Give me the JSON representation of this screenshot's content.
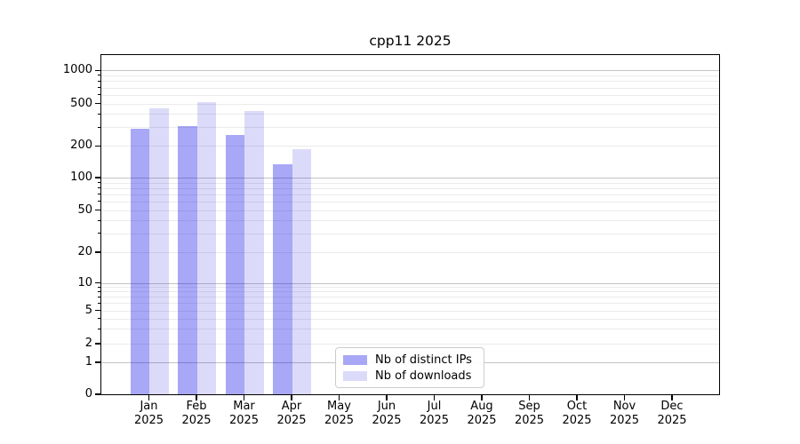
{
  "chart_data": {
    "type": "bar",
    "title": "cpp11 2025",
    "categories": [
      "Jan 2025",
      "Feb 2025",
      "Mar 2025",
      "Apr 2025",
      "May 2025",
      "Jun 2025",
      "Jul 2025",
      "Aug 2025",
      "Sep 2025",
      "Oct 2025",
      "Nov 2025",
      "Dec 2025"
    ],
    "series": [
      {
        "name": "Nb of distinct IPs",
        "color": "rgba(0,0,230,0.34)",
        "values": [
          290,
          310,
          255,
          135,
          null,
          null,
          null,
          null,
          null,
          null,
          null,
          null
        ]
      },
      {
        "name": "Nb of downloads",
        "color": "rgba(0,0,215,0.14)",
        "values": [
          450,
          515,
          425,
          185,
          null,
          null,
          null,
          null,
          null,
          null,
          null,
          null
        ]
      }
    ],
    "y_axis": {
      "ticks": [
        0,
        1,
        2,
        5,
        10,
        20,
        50,
        100,
        200,
        500,
        1000
      ],
      "scale": "symlog"
    },
    "grid": "horizontal, major at powers of 10 plus light minor lines",
    "legend_position": "bottom-center"
  }
}
